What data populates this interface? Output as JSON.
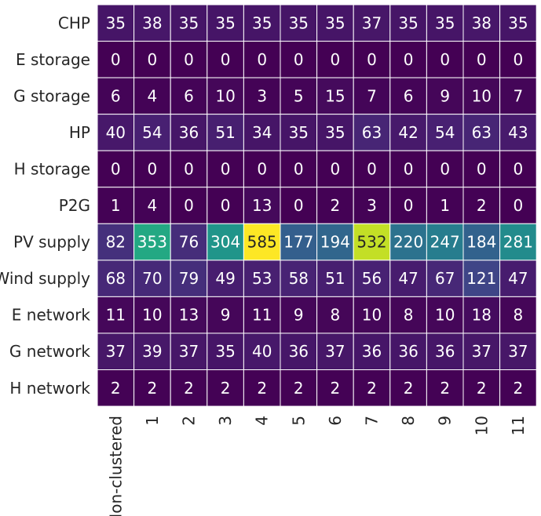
{
  "chart_data": {
    "type": "heatmap",
    "title": "",
    "xlabel": "",
    "ylabel": "",
    "x_categories": [
      "Non-clustered",
      "1",
      "2",
      "3",
      "4",
      "5",
      "6",
      "7",
      "8",
      "9",
      "10",
      "11"
    ],
    "y_categories": [
      "CHP",
      "E storage",
      "G storage",
      "HP",
      "H storage",
      "P2G",
      "PV supply",
      "Wind supply",
      "E network",
      "G network",
      "H network"
    ],
    "values": [
      [
        35,
        38,
        35,
        35,
        35,
        35,
        35,
        37,
        35,
        35,
        38,
        35
      ],
      [
        0,
        0,
        0,
        0,
        0,
        0,
        0,
        0,
        0,
        0,
        0,
        0
      ],
      [
        6,
        4,
        6,
        10,
        3,
        5,
        15,
        7,
        6,
        9,
        10,
        7
      ],
      [
        40,
        54,
        36,
        51,
        34,
        35,
        35,
        63,
        42,
        54,
        63,
        43
      ],
      [
        0,
        0,
        0,
        0,
        0,
        0,
        0,
        0,
        0,
        0,
        0,
        0
      ],
      [
        1,
        4,
        0,
        0,
        13,
        0,
        2,
        3,
        0,
        1,
        2,
        0
      ],
      [
        82,
        353,
        76,
        304,
        585,
        177,
        194,
        532,
        220,
        247,
        184,
        281
      ],
      [
        68,
        70,
        79,
        49,
        53,
        58,
        51,
        56,
        47,
        67,
        121,
        47
      ],
      [
        11,
        10,
        13,
        9,
        11,
        9,
        8,
        10,
        8,
        10,
        18,
        8
      ],
      [
        37,
        39,
        37,
        35,
        40,
        36,
        37,
        36,
        36,
        36,
        37,
        37
      ],
      [
        2,
        2,
        2,
        2,
        2,
        2,
        2,
        2,
        2,
        2,
        2,
        2
      ]
    ],
    "vmin": 0,
    "vmax": 585,
    "colormap": "viridis",
    "annotations": true,
    "legend": "none",
    "grid": false
  }
}
